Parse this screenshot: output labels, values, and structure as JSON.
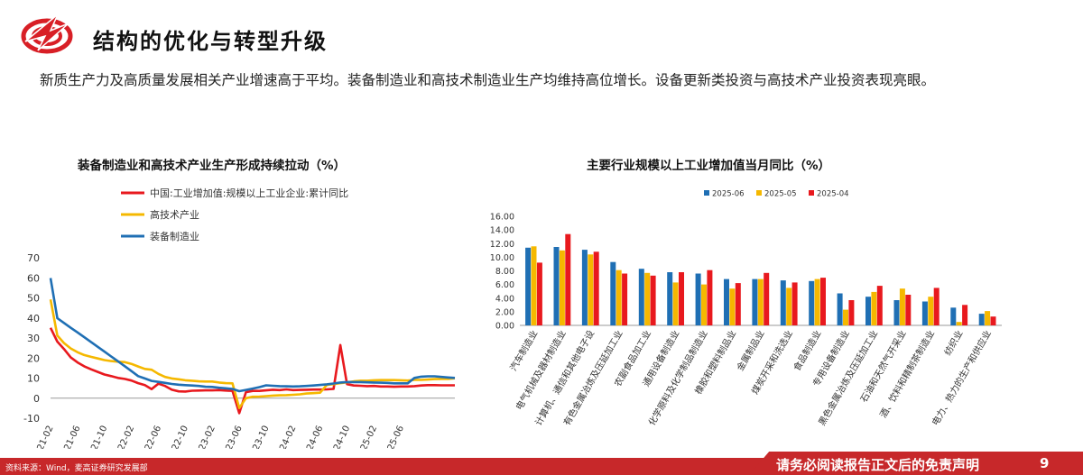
{
  "page": {
    "title": "结构的优化与转型升级",
    "intro": "新质生产力及高质量发展相关产业增速高于平均。装备制造业和高技术制造业生产均维持高位增长。设备更新类投资与高技术产业投资表现亮眼。",
    "source": "资料来源：Wind，麦高证券研究发展部",
    "disclaimer": "请务必阅读报告正文后的免责声明",
    "page_number": "9"
  },
  "colors": {
    "red": "#e8191e",
    "yellow": "#f5b800",
    "blue": "#1f6fb4",
    "footer": "#c7282a"
  },
  "chart_data": [
    {
      "type": "line",
      "title": "装备制造业和高技术产业生产形成持续拉动（%）",
      "x_ticks": [
        "2021-02",
        "2021-06",
        "2021-10",
        "2022-02",
        "2022-06",
        "2022-10",
        "2023-02",
        "2023-06",
        "2023-10",
        "2024-02",
        "2024-06",
        "2024-10",
        "2025-02",
        "2025-06"
      ],
      "y_ticks": [
        "-10",
        "0",
        "10",
        "20",
        "30",
        "40",
        "50",
        "60",
        "70"
      ],
      "ylim": [
        -10,
        70
      ],
      "series": [
        {
          "name": "中国:工业增加值:规模以上工业企业:累计同比",
          "color": "#e8191e",
          "values": [
            35.1,
            28.2,
            24.5,
            20.3,
            17.8,
            15.9,
            14.4,
            13.1,
            11.8,
            11.0,
            10.1,
            9.6,
            8.8,
            7.5,
            6.5,
            4.5,
            7.2,
            6.1,
            4.2,
            3.4,
            3.3,
            3.7,
            3.8,
            3.9,
            3.9,
            4.0,
            3.8,
            3.6,
            -7.5,
            3.0,
            3.6,
            3.6,
            3.9,
            4.2,
            4.0,
            4.4,
            4.0,
            4.1,
            4.2,
            4.3,
            4.3,
            4.4,
            4.6,
            26.5,
            7.0,
            6.3,
            6.2,
            6.0,
            6.1,
            5.8,
            5.8,
            5.7,
            5.8,
            5.8,
            6.0,
            6.3,
            6.5,
            6.5,
            6.4,
            6.4,
            6.4
          ]
        },
        {
          "name": "高技术产业",
          "color": "#f5b800",
          "values": [
            49.2,
            31.2,
            27.5,
            24.8,
            22.9,
            21.5,
            20.6,
            19.8,
            19.0,
            18.5,
            18.2,
            18.0,
            17.1,
            15.8,
            14.6,
            14.2,
            12.1,
            10.6,
            9.8,
            9.4,
            8.9,
            8.7,
            8.4,
            8.3,
            8.3,
            7.8,
            7.5,
            7.4,
            -4.9,
            0.0,
            0.7,
            0.8,
            1.0,
            1.3,
            1.4,
            1.5,
            1.7,
            1.9,
            2.3,
            2.5,
            2.7,
            6.6,
            7.0,
            7.5,
            7.9,
            8.4,
            8.7,
            8.7,
            8.9,
            9.0,
            9.0,
            9.0,
            8.9,
            8.8,
            9.1,
            9.1,
            9.3,
            9.5,
            9.6,
            9.6,
            9.9
          ]
        },
        {
          "name": "装备制造业",
          "color": "#1f6fb4",
          "values": [
            59.9,
            39.9,
            37.5,
            35.1,
            32.8,
            30.4,
            28.0,
            25.6,
            23.2,
            20.8,
            18.4,
            16.0,
            13.5,
            11.0,
            9.8,
            8.6,
            8.1,
            7.6,
            7.1,
            6.7,
            6.5,
            6.3,
            6.1,
            5.7,
            5.6,
            5.2,
            4.9,
            4.6,
            3.5,
            4.1,
            4.8,
            5.5,
            6.4,
            6.2,
            6.0,
            5.9,
            5.8,
            5.9,
            6.1,
            6.3,
            6.6,
            6.9,
            7.3,
            7.8,
            8.0,
            8.0,
            8.0,
            7.9,
            7.8,
            7.7,
            7.6,
            7.4,
            7.4,
            7.4,
            10.1,
            10.7,
            10.9,
            10.9,
            10.6,
            10.3,
            10.1
          ]
        }
      ]
    },
    {
      "type": "bar",
      "title": "主要行业规模以上工业增加值当月同比（%）",
      "categories": [
        "汽车制造业",
        "电气机械及器材制造业",
        "计算机、通信和其他电子设",
        "有色金属冶炼及压延加工业",
        "农副食品加工业",
        "通用设备制造业",
        "化学原料及化学制品制造业",
        "橡胶和塑料制品业",
        "金属制品业",
        "煤炭开采和洗选业",
        "食品制造业",
        "专用设备制造业",
        "黑色金属冶炼及压延加工业",
        "石油和天然气开采业",
        "酒、饮料和精制茶制造业",
        "纺织业",
        "电力、热力的生产和供应业"
      ],
      "y_ticks": [
        "0.00",
        "2.00",
        "4.00",
        "6.00",
        "8.00",
        "10.00",
        "12.00",
        "14.00",
        "16.00"
      ],
      "ylim": [
        0,
        16
      ],
      "series": [
        {
          "name": "2025-06",
          "color": "#1f6fb4",
          "values": [
            11.4,
            11.5,
            11.1,
            9.3,
            8.3,
            7.8,
            7.6,
            6.8,
            6.8,
            6.6,
            6.5,
            4.7,
            4.2,
            3.7,
            3.5,
            2.6,
            1.7
          ]
        },
        {
          "name": "2025-05",
          "color": "#f5b800",
          "values": [
            11.6,
            11.0,
            10.4,
            8.1,
            7.7,
            6.3,
            6.0,
            5.4,
            6.8,
            5.5,
            6.8,
            2.3,
            4.9,
            5.4,
            4.2,
            0.5,
            2.1
          ]
        },
        {
          "name": "2025-04",
          "color": "#e8191e",
          "values": [
            9.2,
            13.4,
            10.8,
            7.6,
            7.3,
            7.8,
            8.1,
            6.2,
            7.7,
            6.3,
            7.0,
            3.7,
            5.8,
            4.5,
            5.5,
            3.0,
            1.3
          ]
        }
      ]
    }
  ]
}
